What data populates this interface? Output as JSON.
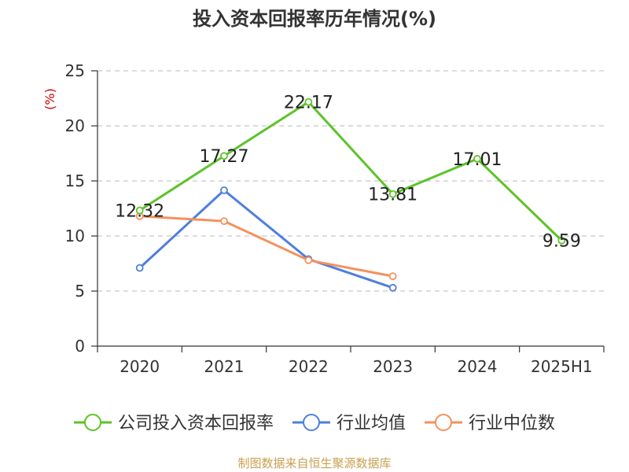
{
  "title": "投入资本回报率历年情况(%)",
  "source": "制图数据来自恒生聚源数据库",
  "colors": {
    "company": "#5cc328",
    "industry_avg": "#4e7fdc",
    "industry_median": "#f4915c",
    "unit": "#cc0000",
    "source": "#c8a050",
    "grid": "#c8c8c8",
    "axis": "#333333"
  },
  "chart_data": {
    "type": "line",
    "title": "投入资本回报率历年情况(%)",
    "y_unit": "(%)",
    "x": [
      "2020",
      "2021",
      "2022",
      "2023",
      "2024",
      "2025H1"
    ],
    "ylim": [
      0,
      25
    ],
    "y_ticks": [
      0,
      5,
      10,
      15,
      20,
      25
    ],
    "grid": "horizontal dashed",
    "legend_position": "bottom",
    "series": [
      {
        "name": "公司投入资本回报率",
        "color": "#5cc328",
        "values": [
          12.32,
          17.27,
          22.17,
          13.81,
          17.01,
          9.59
        ],
        "labels": [
          "12.32",
          "17.27",
          "22.17",
          "13.81",
          "17.01",
          "9.59"
        ]
      },
      {
        "name": "行业均值",
        "color": "#4e7fdc",
        "values": [
          7.1,
          14.15,
          7.9,
          5.3,
          null,
          null
        ]
      },
      {
        "name": "行业中位数",
        "color": "#f4915c",
        "values": [
          11.8,
          11.35,
          7.8,
          6.35,
          null,
          null
        ]
      }
    ]
  }
}
